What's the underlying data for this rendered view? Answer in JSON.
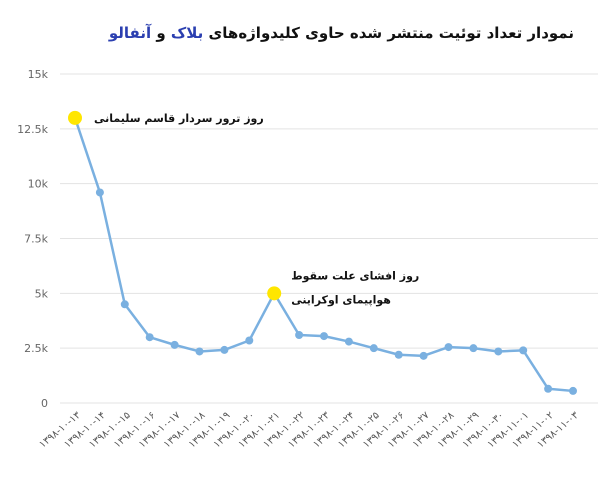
{
  "chart_data": {
    "type": "line",
    "title_parts": [
      {
        "text": "نمودار تعداد توئیت منتشر شده حاوی کلیدواژه‌های ",
        "color": "#111111"
      },
      {
        "text": "بلاک",
        "color": "#2b3fb0"
      },
      {
        "text": " و ",
        "color": "#111111"
      },
      {
        "text": "آنفالو",
        "color": "#2b3fb0"
      }
    ],
    "ylim": [
      0,
      15000
    ],
    "yticks": [
      {
        "value": 0,
        "label": "0"
      },
      {
        "value": 2500,
        "label": "2.5k"
      },
      {
        "value": 5000,
        "label": "5k"
      },
      {
        "value": 7500,
        "label": "7.5k"
      },
      {
        "value": 10000,
        "label": "10k"
      },
      {
        "value": 12500,
        "label": "12.5k"
      },
      {
        "value": 15000,
        "label": "15k"
      }
    ],
    "grid": true,
    "line_color": "#7ab0e0",
    "highlight_color": "#ffe600",
    "categories": [
      "۱۳۹۸-۱۰-۱۳",
      "۱۳۹۸-۱۰-۱۴",
      "۱۳۹۸-۱۰-۱۵",
      "۱۳۹۸-۱۰-۱۶",
      "۱۳۹۸-۱۰-۱۷",
      "۱۳۹۸-۱۰-۱۸",
      "۱۳۹۸-۱۰-۱۹",
      "۱۳۹۸-۱۰-۲۰",
      "۱۳۹۸-۱۰-۲۱",
      "۱۳۹۸-۱۰-۲۲",
      "۱۳۹۸-۱۰-۲۳",
      "۱۳۹۸-۱۰-۲۴",
      "۱۳۹۸-۱۰-۲۵",
      "۱۳۹۸-۱۰-۲۶",
      "۱۳۹۸-۱۰-۲۷",
      "۱۳۹۸-۱۰-۲۸",
      "۱۳۹۸-۱۰-۲۹",
      "۱۳۹۸-۱۰-۳۰",
      "۱۳۹۸-۱۱-۰۱",
      "۱۳۹۸-۱۱-۰۲",
      "۱۳۹۸-۱۱-۰۳"
    ],
    "values": [
      13000,
      9600,
      4500,
      3000,
      2650,
      2350,
      2420,
      2850,
      5000,
      3100,
      3050,
      2800,
      2500,
      2200,
      2150,
      2550,
      2500,
      2350,
      2400,
      650,
      550
    ],
    "highlighted_indices": [
      0,
      8
    ],
    "annotations": [
      {
        "index": 0,
        "lines": [
          "روز ترور سردار قاسم سلیمانی"
        ],
        "placement": "right"
      },
      {
        "index": 8,
        "lines": [
          "روز افشای علت سقوط",
          "هواپیمای اوکراینی"
        ],
        "placement": "right"
      }
    ]
  }
}
